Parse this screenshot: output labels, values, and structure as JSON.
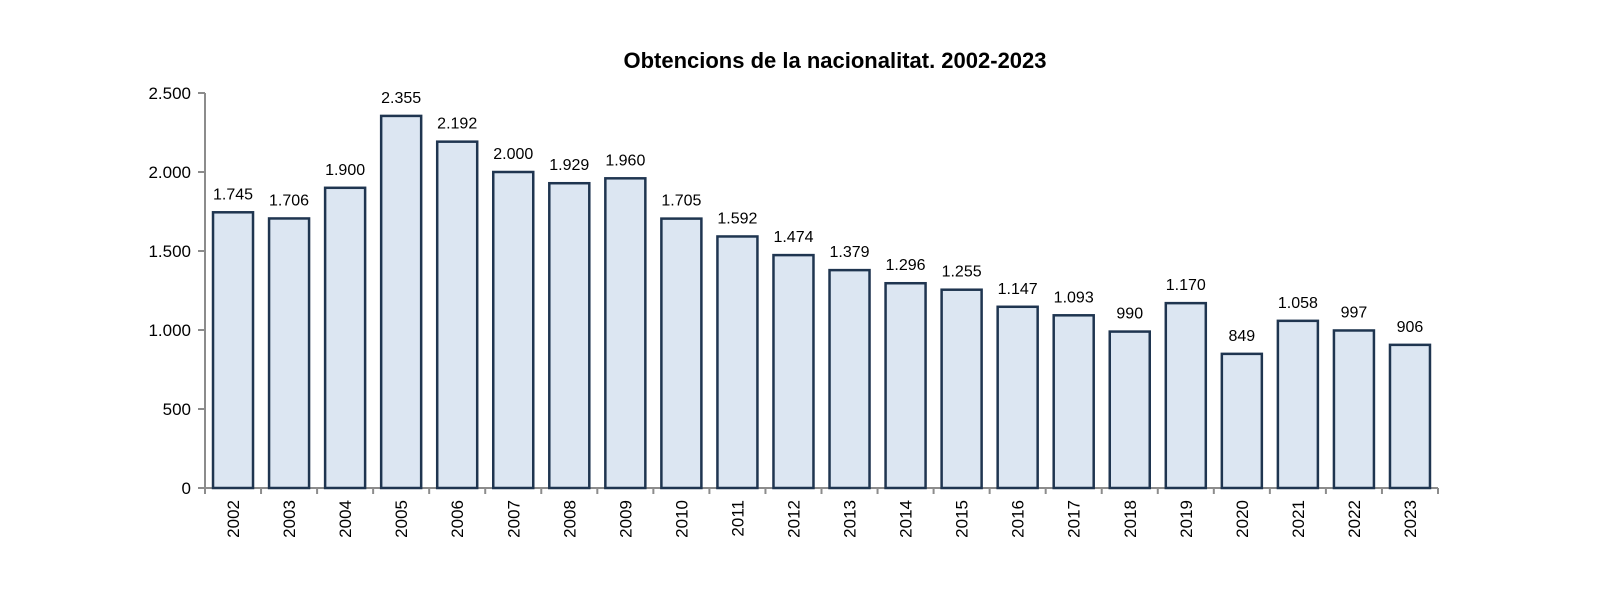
{
  "chart_data": {
    "type": "bar",
    "title": "Obtencions de la nacionalitat. 2002-2023",
    "xlabel": "",
    "ylabel": "",
    "categories": [
      "2002",
      "2003",
      "2004",
      "2005",
      "2006",
      "2007",
      "2008",
      "2009",
      "2010",
      "2011",
      "2012",
      "2013",
      "2014",
      "2015",
      "2016",
      "2017",
      "2018",
      "2019",
      "2020",
      "2021",
      "2022",
      "2023"
    ],
    "values": [
      1745,
      1706,
      1900,
      2355,
      2192,
      2000,
      1929,
      1960,
      1705,
      1592,
      1474,
      1379,
      1296,
      1255,
      1147,
      1093,
      990,
      1170,
      849,
      1058,
      997,
      906
    ],
    "data_labels": [
      "1.745",
      "1.706",
      "1.900",
      "2.355",
      "2.192",
      "2.000",
      "1.929",
      "1.960",
      "1.705",
      "1.592",
      "1.474",
      "1.379",
      "1.296",
      "1.255",
      "1.147",
      "1.093",
      "990",
      "1.170",
      "849",
      "1.058",
      "997",
      "906"
    ],
    "ylim": [
      0,
      2500
    ],
    "yticks": [
      0,
      500,
      1000,
      1500,
      2000,
      2500
    ],
    "ytick_labels": [
      "0",
      "500",
      "1.000",
      "1.500",
      "2.000",
      "2.500"
    ],
    "grid": false,
    "legend": "none",
    "colors": {
      "bar_fill": "#dce6f2",
      "bar_stroke": "#1f3550",
      "axis": "#8c8c8c"
    }
  }
}
